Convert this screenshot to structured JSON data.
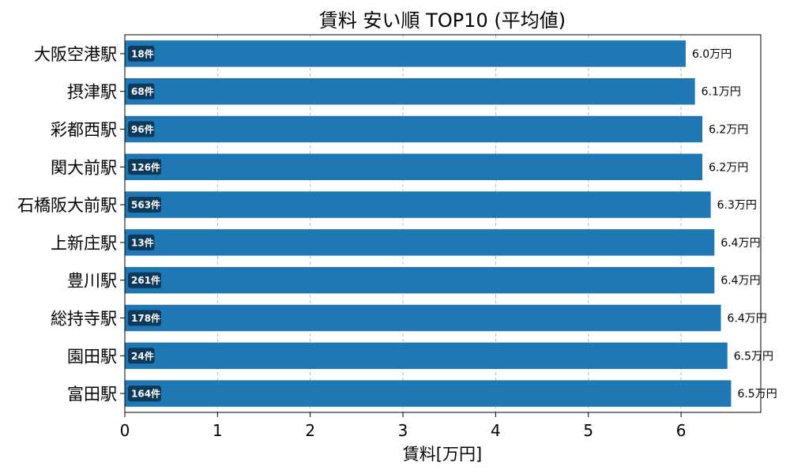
{
  "chart_data": {
    "type": "bar",
    "orientation": "horizontal",
    "title": "賃料 安い順 TOP10 (平均値)",
    "xlabel": "賃料[万円]",
    "ylabel": "",
    "xlim": [
      0,
      6.86
    ],
    "xticks": [
      0,
      1,
      2,
      3,
      4,
      5,
      6
    ],
    "grid": "vertical dashed",
    "categories": [
      "大阪空港駅",
      "摂津駅",
      "彩都西駅",
      "関大前駅",
      "石橋阪大前駅",
      "上新庄駅",
      "豊川駅",
      "総持寺駅",
      "園田駅",
      "富田駅"
    ],
    "values": [
      6.05,
      6.15,
      6.23,
      6.23,
      6.32,
      6.36,
      6.36,
      6.43,
      6.5,
      6.54
    ],
    "value_labels": [
      "6.0万円",
      "6.1万円",
      "6.2万円",
      "6.2万円",
      "6.3万円",
      "6.4万円",
      "6.4万円",
      "6.4万円",
      "6.5万円",
      "6.5万円"
    ],
    "counts": [
      "18件",
      "68件",
      "96件",
      "126件",
      "563件",
      "13件",
      "261件",
      "178件",
      "24件",
      "164件"
    ],
    "colors": {
      "bar": "#1f77b4",
      "badge": "#0d3a5c",
      "grid": "#b0b0b0",
      "axis": "#000000"
    }
  }
}
